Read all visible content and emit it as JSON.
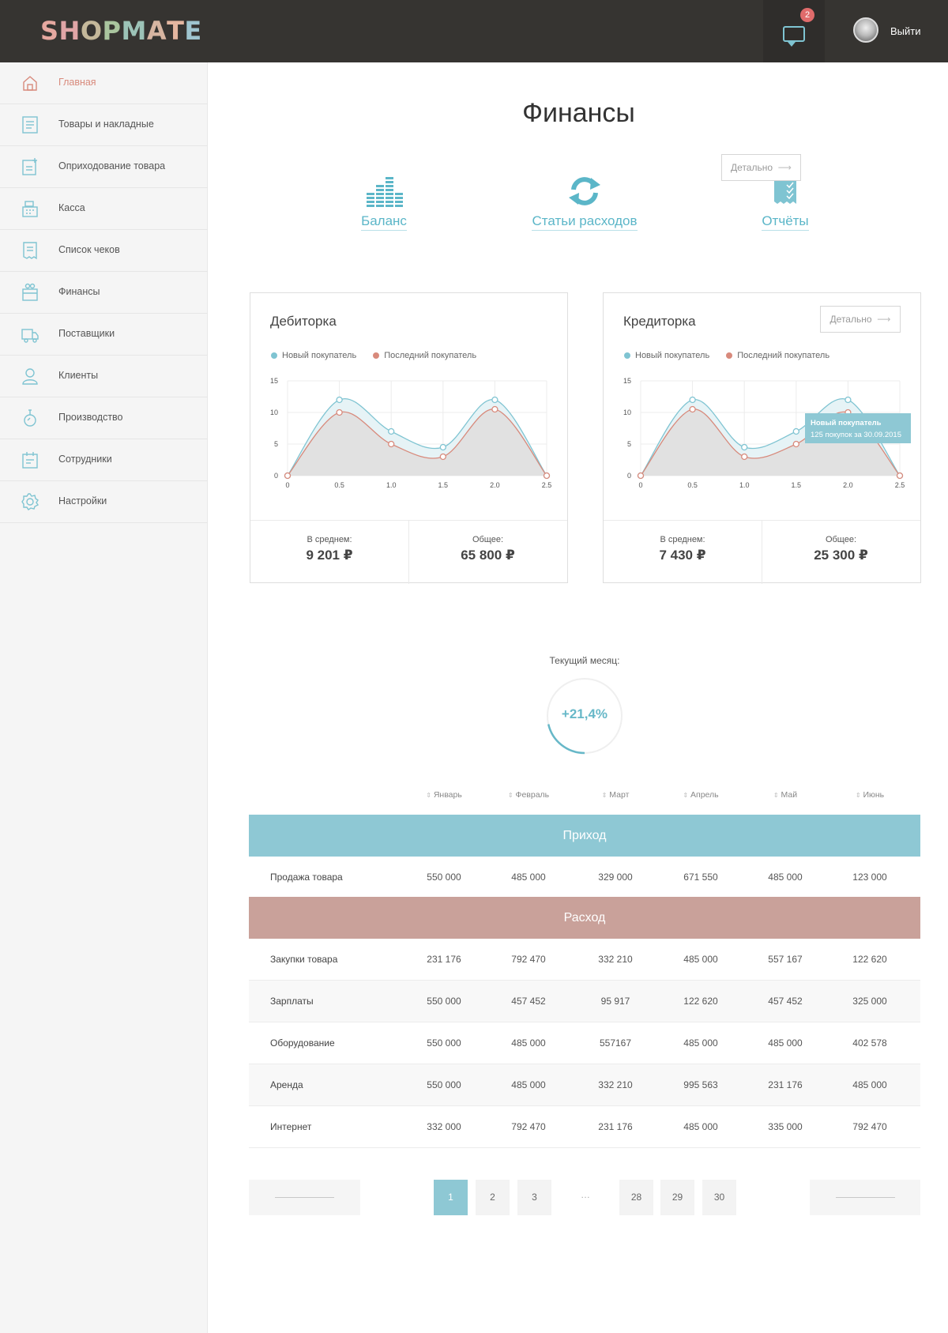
{
  "header": {
    "logo_letters": [
      "S",
      "H",
      "O",
      "P",
      "M",
      "A",
      "T",
      "E"
    ],
    "logo_colors": [
      "#e6a8a0",
      "#e0a5a6",
      "#c4b89a",
      "#a9c49e",
      "#9cc3b7",
      "#d7b5a1",
      "#e3b6a0",
      "#9fc5cf"
    ],
    "messages_count": "2",
    "logout_label": "Выйти"
  },
  "sidebar": {
    "items": [
      {
        "label": "Главная",
        "icon": "home-icon"
      },
      {
        "label": "Товары и накладные",
        "icon": "invoice-icon"
      },
      {
        "label": "Оприходование товара",
        "icon": "add-document-icon"
      },
      {
        "label": "Касса",
        "icon": "cash-register-icon"
      },
      {
        "label": "Список чеков",
        "icon": "receipt-list-icon"
      },
      {
        "label": "Финансы",
        "icon": "wallet-icon"
      },
      {
        "label": "Поставщики",
        "icon": "truck-icon"
      },
      {
        "label": "Клиенты",
        "icon": "user-icon"
      },
      {
        "label": "Производство",
        "icon": "flask-icon"
      },
      {
        "label": "Сотрудники",
        "icon": "calendar-icon"
      },
      {
        "label": "Настройки",
        "icon": "gear-icon"
      }
    ]
  },
  "page": {
    "title": "Финансы",
    "quick_links": [
      {
        "label": "Баланс",
        "icon": "balance-bars-icon"
      },
      {
        "label": "Статьи расходов",
        "icon": "refresh-icon"
      },
      {
        "label": "Отчёты",
        "icon": "report-icon"
      }
    ],
    "detail_label": "Детально"
  },
  "cards": [
    {
      "title": "Дебиторка",
      "legend": [
        "Новый покупатель",
        "Последний покупатель"
      ],
      "avg_label": "В среднем:",
      "avg_value": "9 201 ₽",
      "total_label": "Общее:",
      "total_value": "65 800 ₽"
    },
    {
      "title": "Кредиторка",
      "legend": [
        "Новый покупатель",
        "Последний покупатель"
      ],
      "avg_label": "В среднем:",
      "avg_value": "7 430 ₽",
      "total_label": "Общее:",
      "total_value": "25 300 ₽",
      "tooltip_title": "Новый покупатель",
      "tooltip_text": "125 покупок за 30.09.2015"
    }
  ],
  "chart_data": [
    {
      "type": "area",
      "title": "Дебиторка",
      "x": [
        0,
        0.5,
        1.0,
        1.5,
        2.0,
        2.5
      ],
      "x_tick_labels": [
        "0",
        "0.5",
        "1.0",
        "1.5",
        "2.0",
        "2.5"
      ],
      "y_ticks": [
        0,
        5,
        10,
        15
      ],
      "ylim": [
        0,
        15
      ],
      "grid": true,
      "legend_position": "top-left",
      "series": [
        {
          "name": "Новый покупатель",
          "color": "#7fc4d2",
          "values": [
            0,
            12,
            7,
            4.5,
            12,
            0
          ]
        },
        {
          "name": "Последний покупатель",
          "color": "#d88a7c",
          "values": [
            0,
            10,
            5,
            3,
            10.5,
            0
          ]
        }
      ]
    },
    {
      "type": "area",
      "title": "Кредиторка",
      "x": [
        0,
        0.5,
        1.0,
        1.5,
        2.0,
        2.5
      ],
      "x_tick_labels": [
        "0",
        "0.5",
        "1.0",
        "1.5",
        "2.0",
        "2.5"
      ],
      "y_ticks": [
        0,
        5,
        10,
        15
      ],
      "ylim": [
        0,
        15
      ],
      "grid": true,
      "legend_position": "top-left",
      "series": [
        {
          "name": "Новый покупатель",
          "color": "#7fc4d2",
          "values": [
            0,
            12,
            4.5,
            7,
            12,
            0
          ]
        },
        {
          "name": "Последний покупатель",
          "color": "#d88a7c",
          "values": [
            0,
            10.5,
            3,
            5,
            10,
            0
          ]
        }
      ]
    }
  ],
  "month": {
    "label": "Текущий месяц:",
    "value": "+21,4%",
    "progress": 0.214
  },
  "table": {
    "months": [
      "Январь",
      "Февраль",
      "Март",
      "Апрель",
      "Май",
      "Июнь"
    ],
    "income_label": "Приход",
    "income_color": "#8ec8d4",
    "income_rows": [
      {
        "label": "Продажа товара",
        "values": [
          "550 000",
          "485 000",
          "329 000",
          "671 550",
          "485 000",
          "123 000"
        ]
      }
    ],
    "expense_label": "Расход",
    "expense_color": "#c9a19a",
    "expense_rows": [
      {
        "label": "Закупки товара",
        "values": [
          "231 176",
          "792 470",
          "332 210",
          "485 000",
          "557 167",
          "122 620"
        ]
      },
      {
        "label": "Зарплаты",
        "values": [
          "550 000",
          "457 452",
          "95 917",
          "122 620",
          "457 452",
          "325 000"
        ]
      },
      {
        "label": "Оборудование",
        "values": [
          "550 000",
          "485 000",
          "557167",
          "485 000",
          "485 000",
          "402 578"
        ]
      },
      {
        "label": "Аренда",
        "values": [
          "550 000",
          "485 000",
          "332 210",
          "995 563",
          "231 176",
          "485 000"
        ]
      },
      {
        "label": "Интернет",
        "values": [
          "332 000",
          "792 470",
          "231 176",
          "485 000",
          "335 000",
          "792 470"
        ]
      }
    ]
  },
  "pagination": {
    "pages": [
      "1",
      "2",
      "3",
      "28",
      "29",
      "30"
    ],
    "active": "1",
    "ellipsis": "…"
  }
}
